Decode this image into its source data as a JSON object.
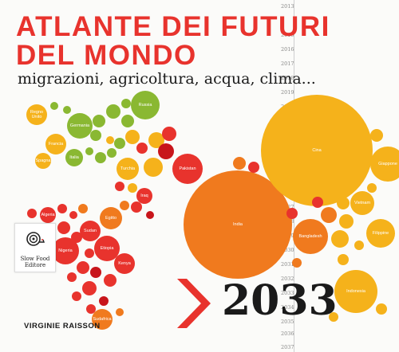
{
  "title_line1": "ATLANTE DEI FUTURI",
  "title_line2": "DEL MONDO",
  "subtitle": "migrazioni, agricoltura, acqua, clima...",
  "years": [
    "2013",
    "2015",
    "2016",
    "2017",
    "2018",
    "2019",
    "2020",
    "2021",
    "2022",
    "2023",
    "2024",
    "2025",
    "2026",
    "2027",
    "2028",
    "2029",
    "2030",
    "2031",
    "2032",
    "2033",
    "2034",
    "2035",
    "2036",
    "2037"
  ],
  "publisher": "Slow Food Editore",
  "big_year": "2033",
  "author": "VIRGINIE RAISSON",
  "colors": {
    "red": "#e8332d",
    "orange": "#f07a1e",
    "yellow": "#f5b21b",
    "green": "#8ab832",
    "darkred": "#c8151b"
  },
  "country_labels": {
    "regno_unito": "Regno Unito",
    "germania": "Germania",
    "francia": "Francia",
    "spagna": "Spagna",
    "italia": "Italia",
    "russia": "Russia",
    "turchia": "Turchia",
    "pakistan": "Pakistan",
    "iraq": "Iraq",
    "cina": "Cina",
    "giappone": "Giappone",
    "india": "India",
    "vietnam": "Vietnam",
    "bangladesh": "Bangladesh",
    "filippine": "Filippine",
    "indonesia": "Indonesia",
    "algeria": "Algeria",
    "egitto": "Egitto",
    "sudan": "Sudan",
    "nigeria": "Nigeria",
    "etiopia": "Etiopia",
    "kenya": "Kenya",
    "sudafrica": "Sudafrica"
  }
}
